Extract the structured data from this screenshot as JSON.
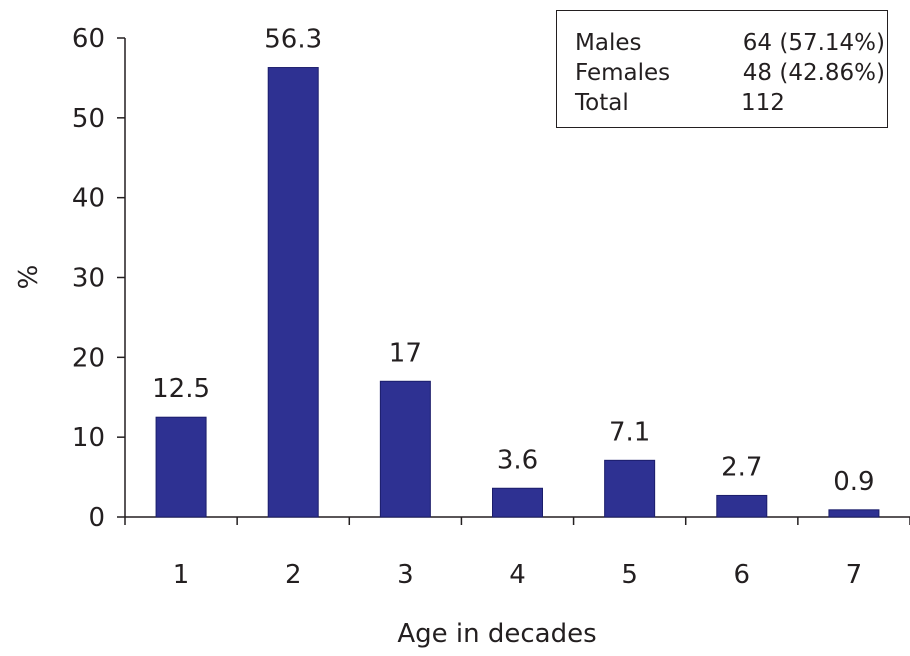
{
  "chart_data": {
    "type": "bar",
    "categories": [
      "1",
      "2",
      "3",
      "4",
      "5",
      "6",
      "7"
    ],
    "values": [
      12.5,
      56.3,
      17,
      3.6,
      7.1,
      2.7,
      0.9
    ],
    "data_labels": [
      "12.5",
      "56.3",
      "17",
      "3.6",
      "7.1",
      "2.7",
      "0.9"
    ],
    "xlabel": "Age in decades",
    "ylabel": "%",
    "ylim": [
      0,
      60
    ],
    "yticks": [
      0,
      10,
      20,
      30,
      40,
      50,
      60
    ],
    "bar_color": "#2e3192",
    "legend_placement": "top-right",
    "legend": [
      {
        "label": "Males",
        "value": "64 (57.14%)"
      },
      {
        "label": "Females",
        "value": "48 (42.86%)"
      },
      {
        "label": "Total",
        "value": "112"
      }
    ]
  }
}
